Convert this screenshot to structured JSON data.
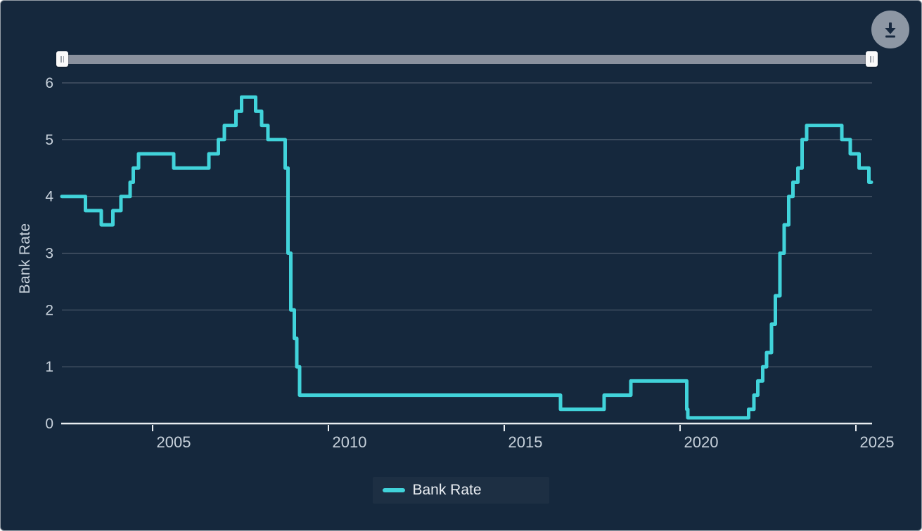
{
  "controls": {
    "download_button_icon": "download-icon",
    "slider": {
      "left_handle": "range-start",
      "right_handle": "range-end"
    }
  },
  "chart_data": {
    "type": "line",
    "step_interpolation": "after",
    "title": "",
    "xlabel": "",
    "ylabel": "Bank Rate",
    "xlim": [
      2002.42,
      2025.46
    ],
    "ylim": [
      0,
      6
    ],
    "yticks": [
      0,
      1,
      2,
      3,
      4,
      5,
      6
    ],
    "xticks": [
      2005,
      2010,
      2015,
      2020,
      2025
    ],
    "xtick_labels": [
      "2005",
      "2010",
      "2015",
      "2020",
      "2025"
    ],
    "grid": true,
    "legend_position": "bottom",
    "colors": {
      "background": "#15283D",
      "line": "#41D3DA",
      "grid": "#4D5A6D",
      "axis": "#E9EDF1",
      "tick_label": "#C7D1DB",
      "slider_track": "#8A919E",
      "download_button": "#8D97A4"
    },
    "series": [
      {
        "name": "Bank Rate",
        "color": "#41D3DA",
        "points": [
          [
            2002.42,
            4.0
          ],
          [
            2003.09,
            3.75
          ],
          [
            2003.54,
            3.5
          ],
          [
            2003.87,
            3.75
          ],
          [
            2004.1,
            4.0
          ],
          [
            2004.36,
            4.25
          ],
          [
            2004.45,
            4.5
          ],
          [
            2004.6,
            4.75
          ],
          [
            2005.6,
            4.5
          ],
          [
            2006.6,
            4.75
          ],
          [
            2006.87,
            5.0
          ],
          [
            2007.04,
            5.25
          ],
          [
            2007.37,
            5.5
          ],
          [
            2007.53,
            5.75
          ],
          [
            2007.93,
            5.5
          ],
          [
            2008.1,
            5.25
          ],
          [
            2008.28,
            5.0
          ],
          [
            2008.77,
            4.5
          ],
          [
            2008.85,
            3.0
          ],
          [
            2008.93,
            2.0
          ],
          [
            2009.03,
            1.5
          ],
          [
            2009.1,
            1.0
          ],
          [
            2009.18,
            0.5
          ],
          [
            2016.6,
            0.25
          ],
          [
            2017.84,
            0.5
          ],
          [
            2018.6,
            0.75
          ],
          [
            2020.19,
            0.25
          ],
          [
            2020.22,
            0.1
          ],
          [
            2021.95,
            0.25
          ],
          [
            2022.1,
            0.5
          ],
          [
            2022.21,
            0.75
          ],
          [
            2022.35,
            1.0
          ],
          [
            2022.46,
            1.25
          ],
          [
            2022.6,
            1.75
          ],
          [
            2022.71,
            2.25
          ],
          [
            2022.84,
            3.0
          ],
          [
            2022.96,
            3.5
          ],
          [
            2023.09,
            4.0
          ],
          [
            2023.21,
            4.25
          ],
          [
            2023.35,
            4.5
          ],
          [
            2023.47,
            5.0
          ],
          [
            2023.6,
            5.25
          ],
          [
            2024.6,
            5.0
          ],
          [
            2024.84,
            4.75
          ],
          [
            2025.09,
            4.5
          ],
          [
            2025.37,
            4.25
          ]
        ],
        "end_x": 2025.44
      }
    ]
  }
}
